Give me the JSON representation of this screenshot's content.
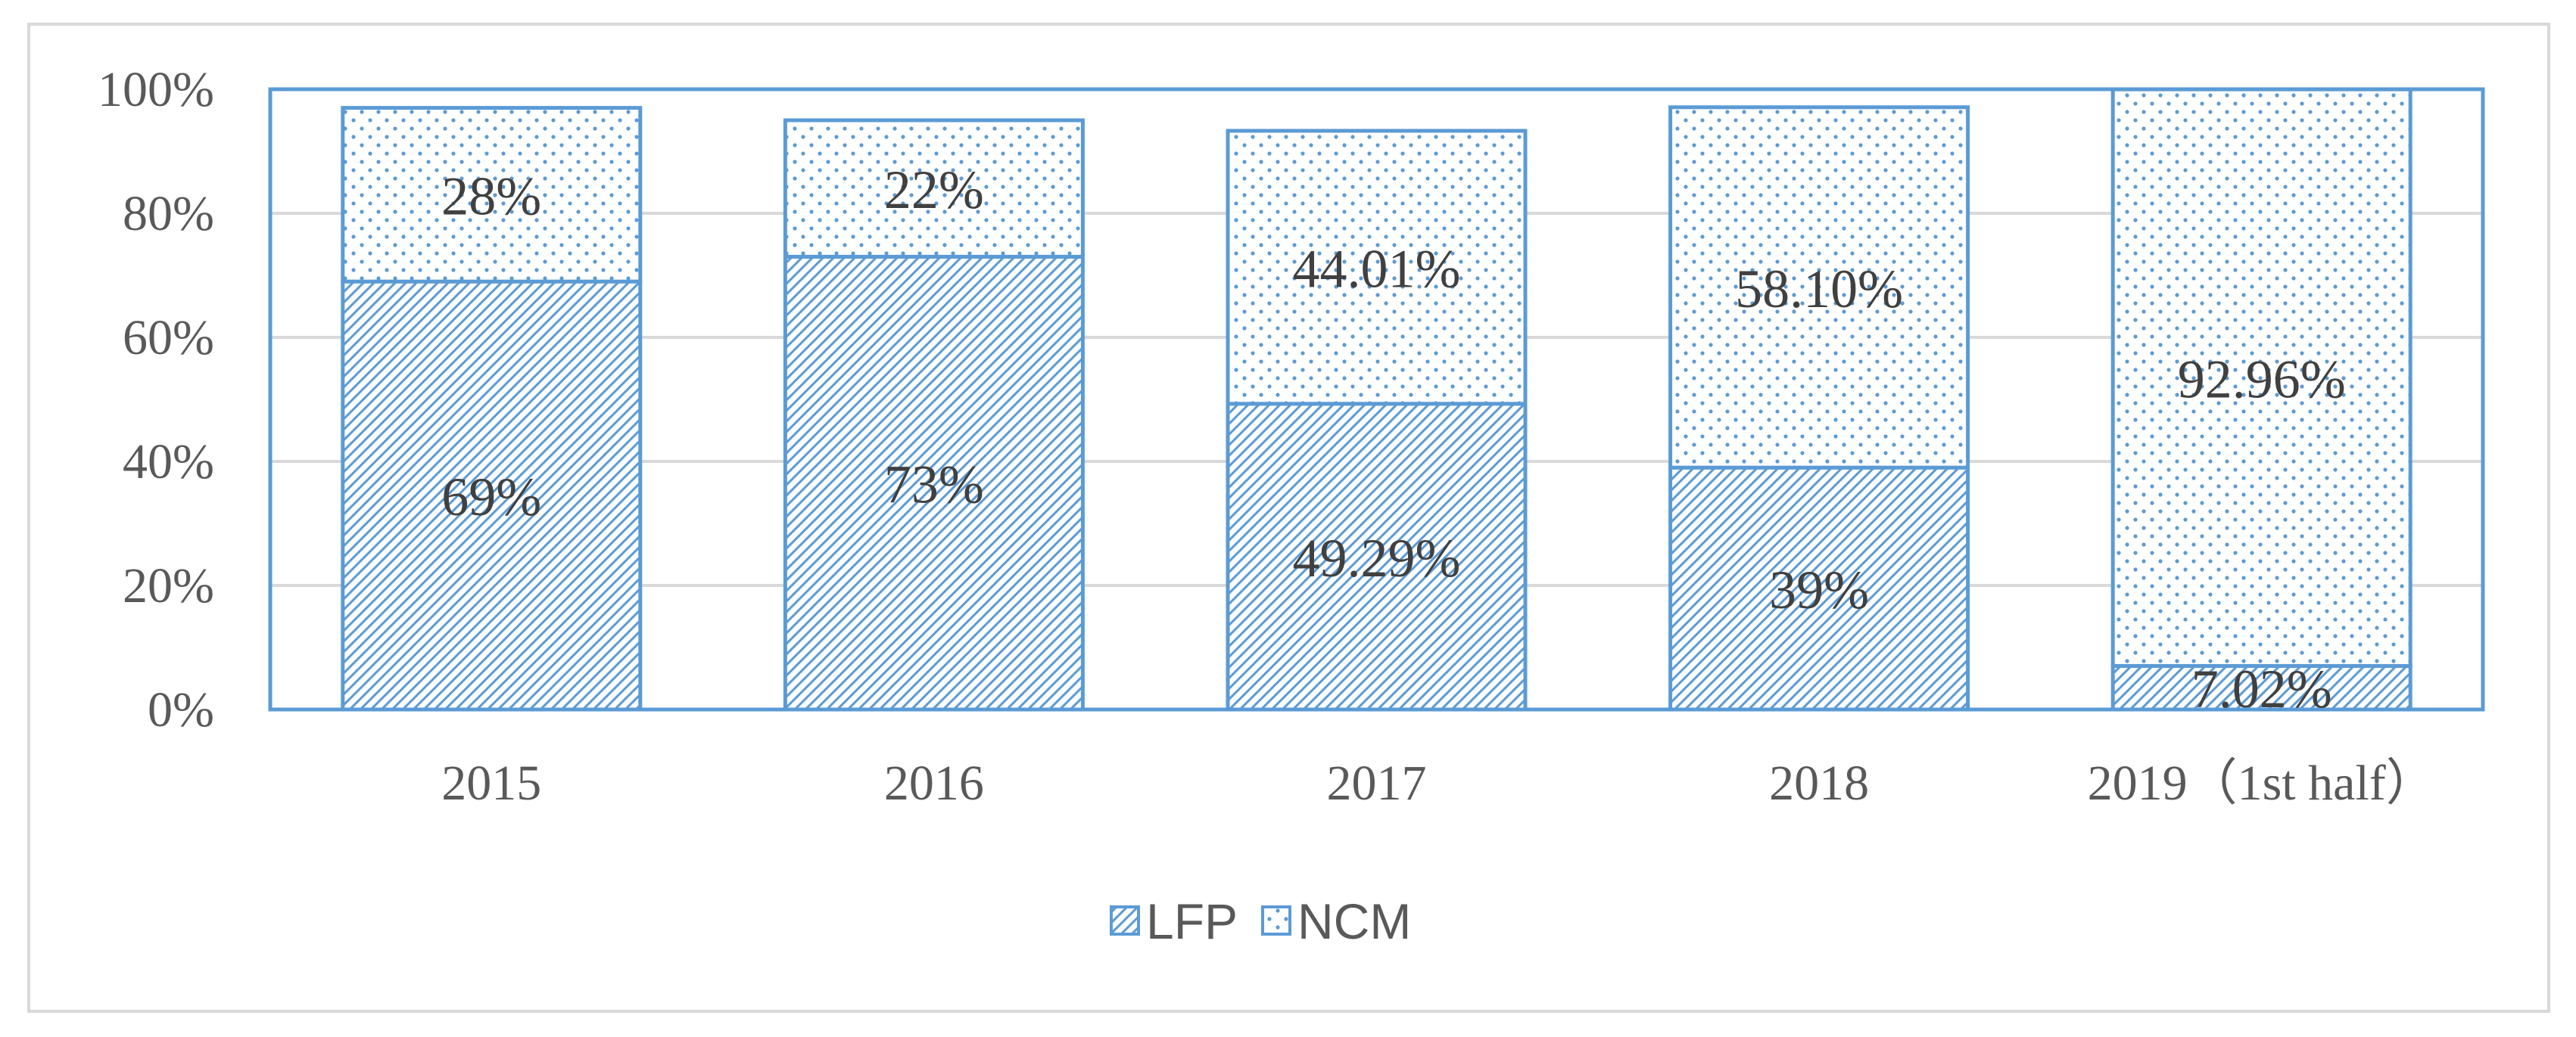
{
  "chart_data": {
    "type": "bar",
    "stacked": true,
    "categories": [
      "2015",
      "2016",
      "2017",
      "2018",
      "2019（1st half）"
    ],
    "series": [
      {
        "name": "LFP",
        "values": [
          69,
          73,
          49.29,
          39,
          7.02
        ],
        "labels": [
          "69%",
          "73%",
          "49.29%",
          "39%",
          "7.02%"
        ],
        "pattern": "diagonal-hatch",
        "color": "#5b9bd5"
      },
      {
        "name": "NCM",
        "values": [
          28,
          22,
          44.01,
          58.1,
          92.96
        ],
        "labels": [
          "28%",
          "22%",
          "44.01%",
          "58.10%",
          "92.96%"
        ],
        "pattern": "dots",
        "color": "#5b9bd5"
      }
    ],
    "yticks": [
      "0%",
      "20%",
      "40%",
      "60%",
      "80%",
      "100%"
    ],
    "ylim": [
      0,
      100
    ],
    "grid": true,
    "legend_position": "bottom",
    "title": "",
    "xlabel": "",
    "ylabel": ""
  },
  "colors": {
    "bar_stroke": "#5b9bd5",
    "hatch": "#5b9bd5",
    "grid": "#d9d9d9",
    "axis": "#bfbfbf",
    "plot_border": "#5b9bd5"
  }
}
